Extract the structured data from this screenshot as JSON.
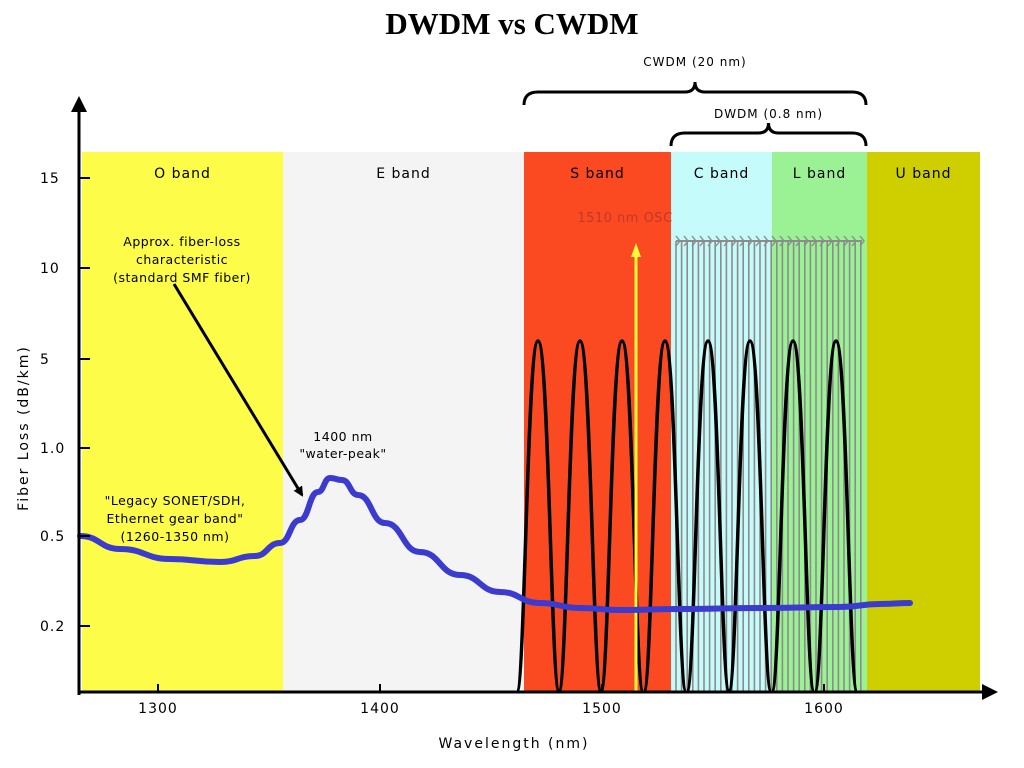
{
  "title": "DWDM vs CWDM",
  "colors": {
    "o_band": "#fdfc49",
    "e_band": "#f4f4f4",
    "s_band": "#fb4a21",
    "c_band": "#c6fbfb",
    "l_band": "#9af295",
    "u_band": "#cfcf00",
    "loss_curve": "#3b3bd0",
    "osc_line": "#fbfb3a",
    "dwdm_lines": "#8c8c8c"
  },
  "chart_data": {
    "type": "diagram",
    "xlabel": "Wavelength (nm)",
    "ylabel": "Fiber Loss (dB/km)",
    "x_ticks": [
      1300,
      1400,
      1500,
      1600
    ],
    "y_ticks": [
      "15",
      "10",
      "5",
      "1.0",
      "0.5",
      "0.2"
    ],
    "bands": [
      {
        "name": "O band",
        "start": 1260,
        "end": 1360
      },
      {
        "name": "E band",
        "start": 1360,
        "end": 1460
      },
      {
        "name": "S band",
        "start": 1460,
        "end": 1530
      },
      {
        "name": "C band",
        "start": 1530,
        "end": 1575
      },
      {
        "name": "L band",
        "start": 1575,
        "end": 1620
      },
      {
        "name": "U band",
        "start": 1620,
        "end": 1675
      }
    ],
    "cwdm_channels_nm": [
      1471,
      1491,
      1511,
      1531,
      1551,
      1571,
      1591,
      1611
    ],
    "osc_nm": 1510,
    "water_peak_nm": 1383,
    "braces": [
      {
        "label": "CWDM (20 nm)",
        "start": 1460,
        "end": 1620
      },
      {
        "label": "DWDM (0.8 nm)",
        "start": 1530,
        "end": 1620
      }
    ],
    "annotations": {
      "fiber_loss": [
        "Approx. fiber-loss",
        "characteristic",
        "(standard SMF fiber)"
      ],
      "water_peak": [
        "1400 nm",
        "\"water-peak\""
      ],
      "legacy": [
        "\"Legacy SONET/SDH,",
        "Ethernet gear band\"",
        "(1260-1350 nm)"
      ],
      "osc": "1510 nm OSC"
    }
  }
}
